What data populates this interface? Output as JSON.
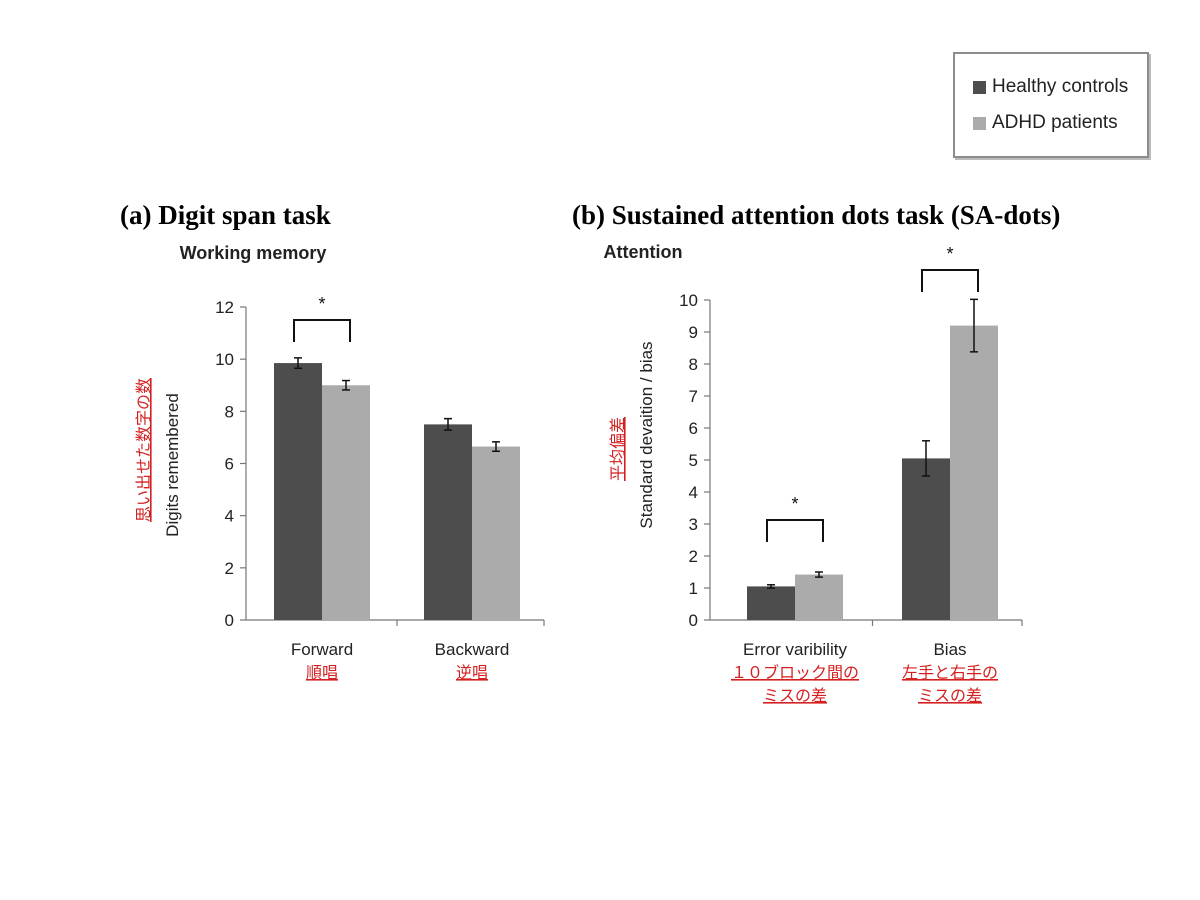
{
  "legend": {
    "items": [
      {
        "label": "Healthy controls",
        "color": "#4d4d4d"
      },
      {
        "label": "ADHD patients",
        "color": "#ababab"
      }
    ]
  },
  "panels": {
    "a": {
      "title": "(a) Digit span task"
    },
    "b": {
      "title": "(b) Sustained attention dots task (SA-dots)"
    }
  },
  "chart_data": [
    {
      "type": "bar",
      "title": "Working memory",
      "ylabel": "Digits remembered",
      "ylabel_jp": "思い出せた数字の数",
      "categories": [
        "Forward",
        "Backward"
      ],
      "categories_jp": [
        [
          "順唱"
        ],
        [
          "逆唱"
        ]
      ],
      "ylim": [
        0,
        12
      ],
      "yticks": [
        0,
        2,
        4,
        6,
        8,
        10,
        12
      ],
      "series": [
        {
          "name": "Healthy controls",
          "color": "#4d4d4d",
          "values": [
            9.85,
            7.5
          ],
          "errors": [
            0.2,
            0.22
          ]
        },
        {
          "name": "ADHD patients",
          "color": "#ababab",
          "values": [
            9.0,
            6.65
          ],
          "errors": [
            0.18,
            0.18
          ]
        }
      ],
      "significance": [
        {
          "category": 0,
          "label": "*"
        }
      ]
    },
    {
      "type": "bar",
      "title": "Attention",
      "ylabel": "Standard devaition / bias",
      "ylabel_jp": "平均偏差",
      "categories": [
        "Error varibility",
        "Bias"
      ],
      "categories_jp": [
        [
          "１０ブロック間の",
          "ミスの差"
        ],
        [
          "左手と右手の",
          "ミスの差"
        ]
      ],
      "ylim": [
        0,
        10
      ],
      "yticks": [
        0,
        1,
        2,
        3,
        4,
        5,
        6,
        7,
        8,
        9,
        10
      ],
      "series": [
        {
          "name": "Healthy controls",
          "color": "#4d4d4d",
          "values": [
            1.05,
            5.05
          ],
          "errors": [
            0.05,
            0.55
          ]
        },
        {
          "name": "ADHD patients",
          "color": "#ababab",
          "values": [
            1.42,
            9.2
          ],
          "errors": [
            0.08,
            0.82
          ]
        }
      ],
      "significance": [
        {
          "category": 0,
          "label": "*"
        },
        {
          "category": 1,
          "label": "*"
        }
      ]
    }
  ]
}
